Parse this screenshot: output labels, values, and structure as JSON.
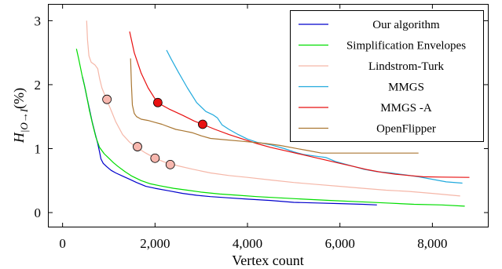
{
  "chart_data": {
    "type": "line",
    "title": "",
    "xlabel": "Vertex count",
    "ylabel_main": "H",
    "ylabel_sub": "|O→I",
    "ylabel_unit": "(%)",
    "xlim": [
      -300,
      9200
    ],
    "ylim": [
      -0.22,
      3.25
    ],
    "x_ticks": [
      0,
      2000,
      4000,
      6000,
      8000
    ],
    "x_tick_labels": [
      "0",
      "2,000",
      "4,000",
      "6,000",
      "8,000"
    ],
    "y_ticks": [
      0,
      1,
      2,
      3
    ],
    "y_tick_labels": [
      "0",
      "1",
      "2",
      "3"
    ],
    "grid": false,
    "legend_position": "top-right",
    "series": [
      {
        "name": "Our algorithm",
        "color": "#0000cc",
        "points": [
          [
            430,
            2.12
          ],
          [
            470,
            2.0
          ],
          [
            520,
            1.82
          ],
          [
            580,
            1.62
          ],
          [
            640,
            1.42
          ],
          [
            700,
            1.25
          ],
          [
            760,
            1.08
          ],
          [
            800,
            0.95
          ],
          [
            830,
            0.84
          ],
          [
            880,
            0.77
          ],
          [
            950,
            0.72
          ],
          [
            1050,
            0.66
          ],
          [
            1150,
            0.62
          ],
          [
            1300,
            0.57
          ],
          [
            1450,
            0.52
          ],
          [
            1600,
            0.47
          ],
          [
            1800,
            0.41
          ],
          [
            2000,
            0.38
          ],
          [
            2300,
            0.34
          ],
          [
            2600,
            0.3
          ],
          [
            2900,
            0.27
          ],
          [
            3200,
            0.25
          ],
          [
            3600,
            0.23
          ],
          [
            4000,
            0.21
          ],
          [
            4500,
            0.19
          ],
          [
            5000,
            0.16
          ],
          [
            5500,
            0.15
          ],
          [
            6000,
            0.14
          ],
          [
            6500,
            0.13
          ],
          [
            6800,
            0.12
          ]
        ],
        "markers": []
      },
      {
        "name": "Simplification Envelopes",
        "color": "#00dd00",
        "points": [
          [
            300,
            2.56
          ],
          [
            350,
            2.4
          ],
          [
            420,
            2.15
          ],
          [
            500,
            1.9
          ],
          [
            580,
            1.6
          ],
          [
            650,
            1.38
          ],
          [
            720,
            1.18
          ],
          [
            800,
            1.02
          ],
          [
            900,
            0.92
          ],
          [
            1000,
            0.85
          ],
          [
            1100,
            0.78
          ],
          [
            1200,
            0.72
          ],
          [
            1350,
            0.64
          ],
          [
            1500,
            0.57
          ],
          [
            1700,
            0.5
          ],
          [
            1900,
            0.45
          ],
          [
            2100,
            0.42
          ],
          [
            2400,
            0.38
          ],
          [
            2700,
            0.35
          ],
          [
            3000,
            0.32
          ],
          [
            3400,
            0.29
          ],
          [
            3800,
            0.27
          ],
          [
            4200,
            0.25
          ],
          [
            4700,
            0.23
          ],
          [
            5200,
            0.21
          ],
          [
            5800,
            0.19
          ],
          [
            6400,
            0.17
          ],
          [
            7000,
            0.15
          ],
          [
            7600,
            0.13
          ],
          [
            8200,
            0.12
          ],
          [
            8700,
            0.1
          ]
        ],
        "markers": []
      },
      {
        "name": "Lindstrom-Turk",
        "color": "#f5b7a8",
        "points": [
          [
            520,
            3.0
          ],
          [
            540,
            2.7
          ],
          [
            570,
            2.45
          ],
          [
            620,
            2.35
          ],
          [
            700,
            2.31
          ],
          [
            760,
            2.25
          ],
          [
            800,
            2.1
          ],
          [
            850,
            1.95
          ],
          [
            950,
            1.77
          ],
          [
            1050,
            1.6
          ],
          [
            1150,
            1.42
          ],
          [
            1300,
            1.22
          ],
          [
            1450,
            1.1
          ],
          [
            1600,
            1.02
          ],
          [
            1800,
            0.93
          ],
          [
            2000,
            0.85
          ],
          [
            2200,
            0.79
          ],
          [
            2500,
            0.73
          ],
          [
            2800,
            0.68
          ],
          [
            3200,
            0.62
          ],
          [
            3600,
            0.58
          ],
          [
            4000,
            0.55
          ],
          [
            4500,
            0.51
          ],
          [
            5000,
            0.47
          ],
          [
            5500,
            0.44
          ],
          [
            6000,
            0.41
          ],
          [
            6500,
            0.38
          ],
          [
            7000,
            0.35
          ],
          [
            7500,
            0.33
          ],
          [
            8000,
            0.3
          ],
          [
            8600,
            0.26
          ]
        ],
        "markers": [
          [
            960,
            1.77
          ],
          [
            1620,
            1.03
          ],
          [
            2000,
            0.85
          ],
          [
            2330,
            0.75
          ]
        ],
        "marker_color": "#f7b7ae"
      },
      {
        "name": "MMGS",
        "color": "#22aadd",
        "points": [
          [
            2250,
            2.54
          ],
          [
            2350,
            2.4
          ],
          [
            2500,
            2.2
          ],
          [
            2700,
            1.95
          ],
          [
            2900,
            1.72
          ],
          [
            3100,
            1.58
          ],
          [
            3250,
            1.53
          ],
          [
            3350,
            1.48
          ],
          [
            3450,
            1.37
          ],
          [
            3600,
            1.3
          ],
          [
            3800,
            1.22
          ],
          [
            4000,
            1.15
          ],
          [
            4200,
            1.1
          ],
          [
            4500,
            1.06
          ],
          [
            4800,
            1.0
          ],
          [
            5000,
            0.95
          ],
          [
            5200,
            0.91
          ],
          [
            5500,
            0.88
          ],
          [
            5700,
            0.86
          ],
          [
            5900,
            0.8
          ],
          [
            6200,
            0.74
          ],
          [
            6500,
            0.68
          ],
          [
            6800,
            0.64
          ],
          [
            7100,
            0.62
          ],
          [
            7400,
            0.59
          ],
          [
            7700,
            0.56
          ],
          [
            8000,
            0.52
          ],
          [
            8300,
            0.48
          ],
          [
            8650,
            0.46
          ]
        ],
        "markers": []
      },
      {
        "name": "MMGS -A",
        "color": "#e81010",
        "points": [
          [
            1450,
            2.83
          ],
          [
            1550,
            2.5
          ],
          [
            1700,
            2.18
          ],
          [
            1850,
            1.95
          ],
          [
            2050,
            1.72
          ],
          [
            2300,
            1.62
          ],
          [
            2600,
            1.52
          ],
          [
            2850,
            1.43
          ],
          [
            3030,
            1.38
          ],
          [
            3300,
            1.3
          ],
          [
            3600,
            1.22
          ],
          [
            3900,
            1.15
          ],
          [
            4200,
            1.08
          ],
          [
            4500,
            1.02
          ],
          [
            4800,
            0.97
          ],
          [
            5100,
            0.92
          ],
          [
            5400,
            0.87
          ],
          [
            5700,
            0.82
          ],
          [
            6000,
            0.77
          ],
          [
            6300,
            0.72
          ],
          [
            6600,
            0.67
          ],
          [
            6900,
            0.63
          ],
          [
            7200,
            0.6
          ],
          [
            7500,
            0.58
          ],
          [
            7800,
            0.56
          ],
          [
            8200,
            0.555
          ],
          [
            8800,
            0.55
          ]
        ],
        "markers": [
          [
            2060,
            1.72
          ],
          [
            3030,
            1.38
          ]
        ],
        "marker_color": "#e81010"
      },
      {
        "name": "OpenFlipper",
        "color": "#aa7733",
        "points": [
          [
            1470,
            2.41
          ],
          [
            1490,
            2.0
          ],
          [
            1510,
            1.68
          ],
          [
            1550,
            1.55
          ],
          [
            1600,
            1.5
          ],
          [
            1700,
            1.46
          ],
          [
            1850,
            1.44
          ],
          [
            2000,
            1.41
          ],
          [
            2150,
            1.38
          ],
          [
            2300,
            1.34
          ],
          [
            2450,
            1.3
          ],
          [
            2600,
            1.28
          ],
          [
            2800,
            1.25
          ],
          [
            3000,
            1.2
          ],
          [
            3200,
            1.16
          ],
          [
            3500,
            1.14
          ],
          [
            3800,
            1.12
          ],
          [
            4100,
            1.1
          ],
          [
            4400,
            1.08
          ],
          [
            4700,
            1.05
          ],
          [
            5000,
            1.01
          ],
          [
            5300,
            0.97
          ],
          [
            5600,
            0.93
          ],
          [
            6000,
            0.93
          ],
          [
            6600,
            0.93
          ],
          [
            7200,
            0.93
          ],
          [
            7700,
            0.93
          ]
        ],
        "markers": []
      }
    ]
  }
}
